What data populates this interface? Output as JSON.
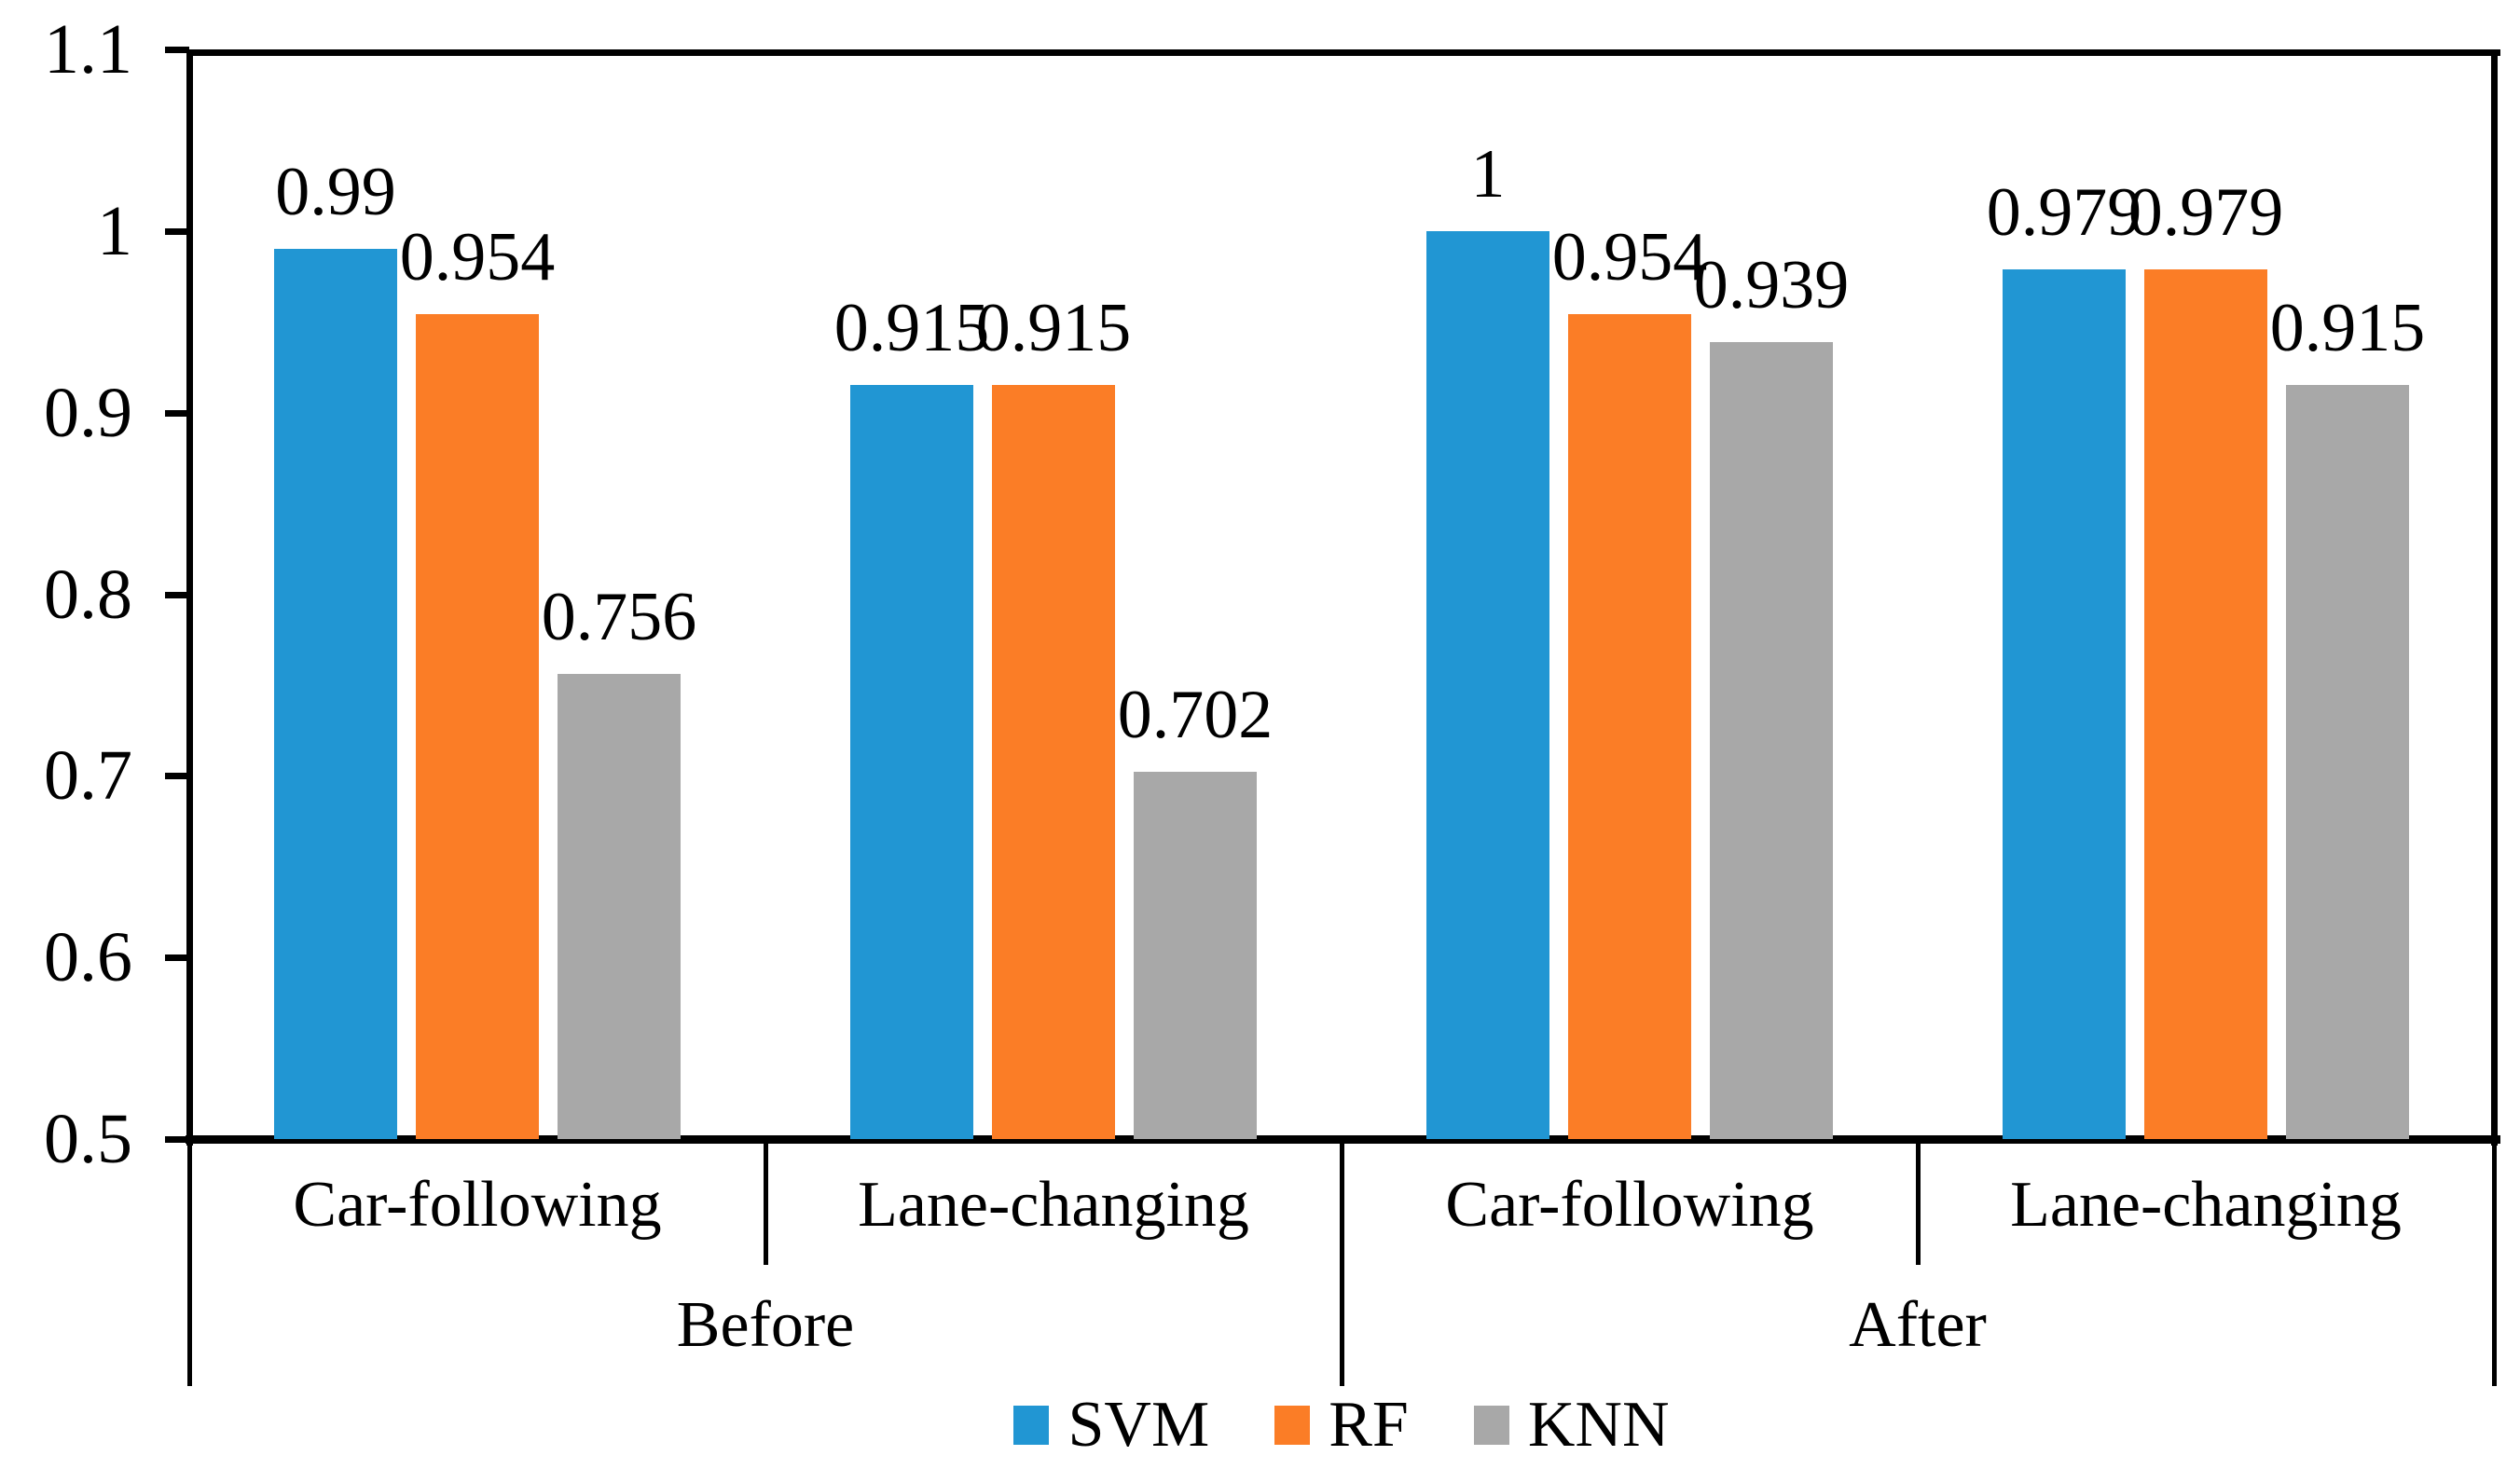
{
  "chart_data": {
    "type": "bar",
    "title": "",
    "xlabel": "",
    "ylabel": "",
    "grid": false,
    "y_axis": {
      "min": 0.5,
      "max": 1.1,
      "tick_step": 0.1,
      "tick_values": [
        0.5,
        0.6,
        0.7,
        0.8,
        0.9,
        1.0,
        1.1
      ],
      "tick_labels": [
        "0.5",
        "0.6",
        "0.7",
        "0.8",
        "0.9",
        "1",
        "1.1"
      ]
    },
    "categories": [
      "Car-following",
      "Lane-changing",
      "Car-following",
      "Lane-changing"
    ],
    "category_groups": [
      {
        "label": "Before",
        "start": 0,
        "end": 1
      },
      {
        "label": "After",
        "start": 2,
        "end": 3
      }
    ],
    "series": [
      {
        "name": "SVM",
        "color": "#2196d3",
        "values": [
          0.99,
          0.915,
          1,
          0.979
        ],
        "labels": [
          "0.99",
          "0.915",
          "1",
          "0.979"
        ]
      },
      {
        "name": "RF",
        "color": "#fb7d26",
        "values": [
          0.954,
          0.915,
          0.954,
          0.979
        ],
        "labels": [
          "0.954",
          "0.915",
          "0.954",
          "0.979"
        ]
      },
      {
        "name": "KNN",
        "color": "#a8a8a8",
        "values": [
          0.756,
          0.702,
          0.939,
          0.915
        ],
        "labels": [
          "0.756",
          "0.702",
          "0.939",
          "0.915"
        ]
      }
    ],
    "legend": {
      "position": "bottom",
      "entries": [
        "SVM",
        "RF",
        "KNN"
      ]
    },
    "axis_color": "#000000",
    "label_color": "#000000"
  }
}
